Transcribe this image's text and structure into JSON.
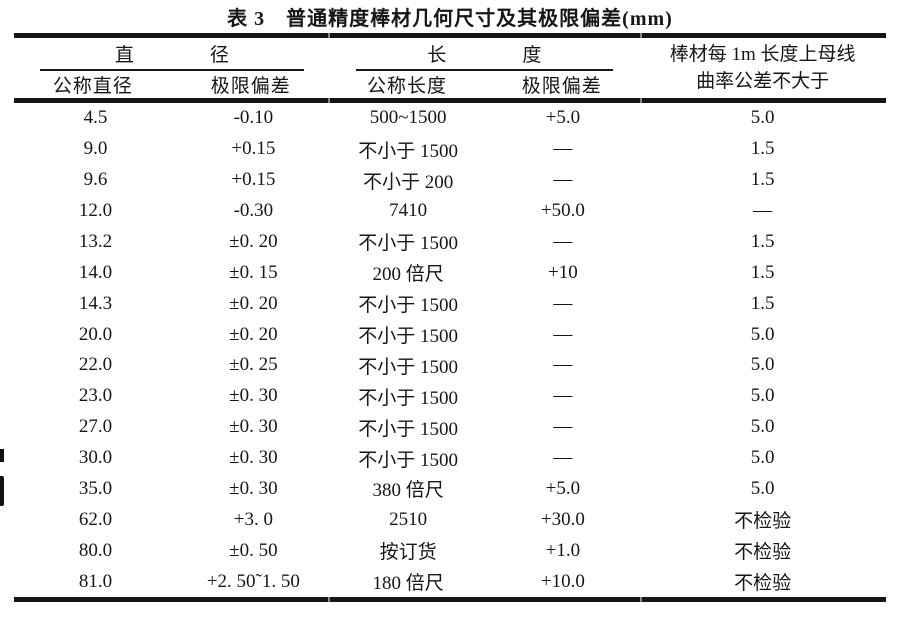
{
  "title": "表 3　普通精度棒材几何尺寸及其极限偏差(mm)",
  "header": {
    "group_diameter": "直　　　　径",
    "group_length": "长　　　　度",
    "col_nominal_diameter": "公称直径",
    "col_diameter_deviation": "极限偏差",
    "col_nominal_length": "公称长度",
    "col_length_deviation": "极限偏差",
    "col_curvature_line1": "棒材每 1m 长度上母线",
    "col_curvature_line2": "曲率公差不大于"
  },
  "rows": [
    [
      "4.5",
      "-0.10",
      "500~1500",
      "+5.0",
      "5.0"
    ],
    [
      "9.0",
      "+0.15",
      "不小于 1500",
      "—",
      "1.5"
    ],
    [
      "9.6",
      "+0.15",
      "不小于 200",
      "—",
      "1.5"
    ],
    [
      "12.0",
      "-0.30",
      "7410",
      "+50.0",
      "—"
    ],
    [
      "13.2",
      "±0. 20",
      "不小于 1500",
      "—",
      "1.5"
    ],
    [
      "14.0",
      "±0. 15",
      "200 倍尺",
      "+10",
      "1.5"
    ],
    [
      "14.3",
      "±0. 20",
      "不小于 1500",
      "—",
      "1.5"
    ],
    [
      "20.0",
      "±0. 20",
      "不小于 1500",
      "—",
      "5.0"
    ],
    [
      "22.0",
      "±0. 25",
      "不小于 1500",
      "—",
      "5.0"
    ],
    [
      "23.0",
      "±0. 30",
      "不小于 1500",
      "—",
      "5.0"
    ],
    [
      "27.0",
      "±0. 30",
      "不小于 1500",
      "—",
      "5.0"
    ],
    [
      "30.0",
      "±0. 30",
      "不小于 1500",
      "—",
      "5.0"
    ],
    [
      "35.0",
      "±0. 30",
      "380 倍尺",
      "+5.0",
      "5.0"
    ],
    [
      "62.0",
      "+3. 0",
      "2510",
      "+30.0",
      "不检验"
    ],
    [
      "80.0",
      "±0. 50",
      "按订货",
      "+1.0",
      "不检验"
    ],
    [
      "81.0",
      "+2. 50˜1. 50",
      "180 倍尺",
      "+10.0",
      "不检验"
    ]
  ],
  "colors": {
    "text": "#161616",
    "rule": "#161616",
    "background": "#ffffff"
  }
}
